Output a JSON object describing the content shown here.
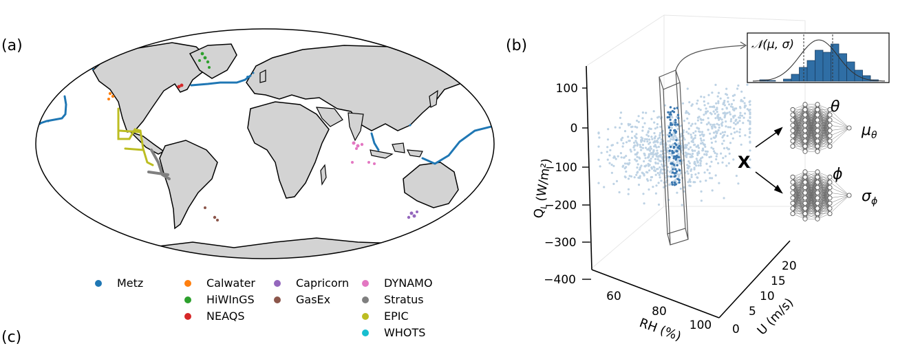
{
  "panel_labels": {
    "a": "(a)",
    "b": "(b)",
    "c": "(c)"
  },
  "legend": {
    "items": [
      {
        "name": "Metz",
        "color": "#1f77b4"
      },
      {
        "name": "Calwater",
        "color": "#ff7f0e"
      },
      {
        "name": "HiWInGS",
        "color": "#2ca02c"
      },
      {
        "name": "NEAQS",
        "color": "#d62728"
      },
      {
        "name": "Capricorn",
        "color": "#9467bd"
      },
      {
        "name": "GasEx",
        "color": "#8c564b"
      },
      {
        "name": "DYNAMO",
        "color": "#e377c2"
      },
      {
        "name": "Stratus",
        "color": "#7f7f7f"
      },
      {
        "name": "EPIC",
        "color": "#bcbd22"
      },
      {
        "name": "WHOTS",
        "color": "#17becf"
      }
    ]
  },
  "plot3d": {
    "z_label": "Q",
    "z_label_sub": "L",
    "z_label_unit": "(W/m²)",
    "z_ticks": [
      "100",
      "0",
      "−100",
      "−200",
      "−300",
      "−400"
    ],
    "x_label": "RH (%)",
    "x_ticks": [
      "60",
      "80",
      "100"
    ],
    "y_label": "U (m/s)",
    "y_ticks": [
      "0",
      "5",
      "10",
      "15",
      "20"
    ]
  },
  "network": {
    "input": "X",
    "top_param": "θ",
    "top_output": "μ",
    "top_output_sub": "θ",
    "bottom_param": "ϕ",
    "bottom_output": "σ",
    "bottom_output_sub": "ϕ",
    "dist_label": "𝒩(μ, σ)"
  },
  "colors": {
    "land": "#d3d3d3",
    "scatter": "#a8c4dc",
    "highlight": "#3b78b0",
    "hist": "#2f6ea5"
  }
}
